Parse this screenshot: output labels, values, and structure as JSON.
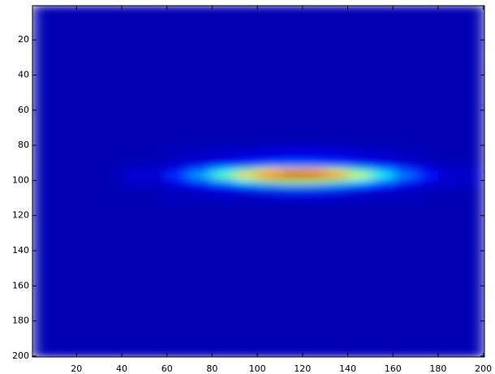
{
  "chart_data": {
    "type": "heatmap",
    "xbins": [
      0.5,
      20,
      40,
      60,
      70,
      80,
      90,
      100,
      110,
      120,
      130,
      140,
      150,
      160,
      170,
      180,
      200.5
    ],
    "ybins": [
      0.5,
      60,
      80,
      86,
      90,
      93,
      96,
      99,
      102,
      106,
      112,
      130,
      200.5
    ],
    "values": [
      [
        0.05,
        0.05,
        0.05,
        0.05,
        0.05,
        0.05,
        0.05,
        0.05,
        0.05,
        0.05,
        0.05,
        0.05,
        0.05,
        0.05,
        0.05,
        0.05
      ],
      [
        0.05,
        0.05,
        0.05,
        0.05,
        0.05,
        0.05,
        0.05,
        0.05,
        0.05,
        0.05,
        0.05,
        0.05,
        0.05,
        0.05,
        0.05,
        0.05
      ],
      [
        0.05,
        0.05,
        0.05,
        0.06,
        0.06,
        0.07,
        0.07,
        0.08,
        0.09,
        0.09,
        0.08,
        0.07,
        0.06,
        0.06,
        0.05,
        0.05
      ],
      [
        0.05,
        0.05,
        0.05,
        0.06,
        0.08,
        0.09,
        0.11,
        0.13,
        0.14,
        0.14,
        0.12,
        0.1,
        0.09,
        0.07,
        0.06,
        0.05
      ],
      [
        0.05,
        0.05,
        0.06,
        0.08,
        0.11,
        0.15,
        0.19,
        0.24,
        0.26,
        0.25,
        0.22,
        0.18,
        0.13,
        0.1,
        0.07,
        0.06
      ],
      [
        0.05,
        0.05,
        0.08,
        0.14,
        0.23,
        0.36,
        0.51,
        0.64,
        0.7,
        0.69,
        0.59,
        0.45,
        0.31,
        0.2,
        0.12,
        0.07
      ],
      [
        0.05,
        0.05,
        0.09,
        0.18,
        0.3,
        0.47,
        0.67,
        0.85,
        0.94,
        0.92,
        0.79,
        0.59,
        0.4,
        0.25,
        0.15,
        0.08
      ],
      [
        0.05,
        0.05,
        0.07,
        0.12,
        0.19,
        0.29,
        0.4,
        0.5,
        0.55,
        0.54,
        0.46,
        0.35,
        0.25,
        0.16,
        0.11,
        0.07
      ],
      [
        0.05,
        0.05,
        0.06,
        0.08,
        0.1,
        0.13,
        0.17,
        0.21,
        0.23,
        0.22,
        0.2,
        0.16,
        0.12,
        0.09,
        0.07,
        0.06
      ],
      [
        0.05,
        0.05,
        0.05,
        0.06,
        0.06,
        0.07,
        0.07,
        0.08,
        0.09,
        0.09,
        0.08,
        0.07,
        0.06,
        0.06,
        0.05,
        0.05
      ],
      [
        0.05,
        0.05,
        0.05,
        0.05,
        0.05,
        0.05,
        0.05,
        0.05,
        0.05,
        0.05,
        0.05,
        0.05,
        0.05,
        0.05,
        0.05,
        0.05
      ],
      [
        0.05,
        0.05,
        0.05,
        0.05,
        0.05,
        0.05,
        0.05,
        0.05,
        0.05,
        0.05,
        0.05,
        0.05,
        0.05,
        0.05,
        0.05,
        0.05
      ]
    ],
    "clim": [
      0,
      1
    ],
    "colormap": "jet",
    "xlim": [
      0.5,
      200.5
    ],
    "ylim": [
      0.5,
      200.5
    ],
    "y_reversed": true,
    "xticks": [
      20,
      40,
      60,
      80,
      100,
      120,
      140,
      160,
      180,
      200
    ],
    "yticks": [
      20,
      40,
      60,
      80,
      100,
      120,
      140,
      160,
      180,
      200
    ]
  }
}
